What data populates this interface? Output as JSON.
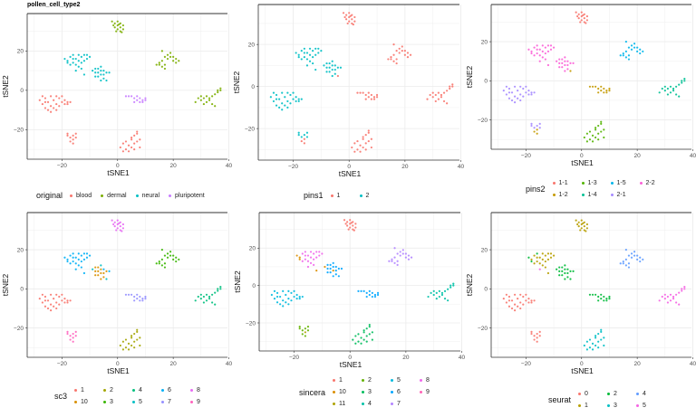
{
  "title": "pollen_cell_type2",
  "points": {
    "A": [
      [
        -2,
        35
      ],
      [
        -1,
        34
      ],
      [
        0,
        33
      ],
      [
        1,
        34
      ],
      [
        2,
        33
      ],
      [
        0,
        31
      ],
      [
        1,
        30
      ],
      [
        -1,
        32
      ],
      [
        2,
        31
      ],
      [
        0,
        35
      ],
      [
        1,
        32
      ],
      [
        -0.5,
        30
      ],
      [
        1.5,
        29.5
      ],
      [
        0.5,
        33.5
      ],
      [
        -1.5,
        33
      ]
    ],
    "B": [
      [
        -19,
        16
      ],
      [
        -18,
        15
      ],
      [
        -17,
        17
      ],
      [
        -16,
        18
      ],
      [
        -15,
        16
      ],
      [
        -14,
        15
      ],
      [
        -13,
        17
      ],
      [
        -12,
        18
      ],
      [
        -11,
        18
      ],
      [
        -10,
        17
      ],
      [
        -16,
        14
      ],
      [
        -15,
        13
      ],
      [
        -14,
        12
      ],
      [
        -13,
        14
      ],
      [
        -12,
        15
      ],
      [
        -17,
        13
      ],
      [
        -18,
        14
      ],
      [
        -14,
        18
      ],
      [
        -11,
        16
      ],
      [
        -12,
        8
      ],
      [
        -15,
        10
      ],
      [
        -13,
        11
      ],
      [
        -16,
        16
      ]
    ],
    "C": [
      [
        -9,
        10
      ],
      [
        -8,
        9
      ],
      [
        -7,
        11
      ],
      [
        -6,
        12
      ],
      [
        -5,
        10
      ],
      [
        -4,
        9
      ],
      [
        -6,
        8
      ],
      [
        -7,
        7
      ],
      [
        -5,
        6
      ],
      [
        -4,
        5
      ],
      [
        -6,
        5
      ],
      [
        -8,
        7
      ],
      [
        -7,
        9
      ],
      [
        -5,
        8
      ],
      [
        -3,
        9
      ],
      [
        -6,
        10
      ],
      [
        -8,
        11
      ]
    ],
    "D": [
      [
        14,
        13
      ],
      [
        15,
        14
      ],
      [
        16,
        12
      ],
      [
        16,
        15
      ],
      [
        17,
        13
      ],
      [
        17,
        17
      ],
      [
        18,
        16
      ],
      [
        18,
        18
      ],
      [
        19,
        17
      ],
      [
        20,
        15
      ],
      [
        21,
        16
      ],
      [
        22,
        15
      ],
      [
        16,
        20
      ],
      [
        19,
        19
      ],
      [
        15,
        13
      ],
      [
        17,
        11
      ],
      [
        20,
        17
      ],
      [
        21,
        14
      ]
    ],
    "E": [
      [
        -28,
        -5
      ],
      [
        -27,
        -7
      ],
      [
        -26,
        -4
      ],
      [
        -26,
        -9
      ],
      [
        -25,
        -6
      ],
      [
        -25,
        -10
      ],
      [
        -24,
        -3
      ],
      [
        -24,
        -8
      ],
      [
        -23,
        -5
      ],
      [
        -23,
        -9
      ],
      [
        -22,
        -3
      ],
      [
        -22,
        -7
      ],
      [
        -21,
        -4
      ],
      [
        -20,
        -6
      ],
      [
        -19,
        -5
      ],
      [
        -18,
        -6
      ],
      [
        -18,
        -7
      ],
      [
        -17,
        -6
      ],
      [
        -27,
        -3
      ],
      [
        -24,
        -11
      ],
      [
        -21,
        -8
      ],
      [
        -20,
        -3
      ],
      [
        -19,
        -7
      ],
      [
        -26,
        -6
      ],
      [
        -22,
        -10
      ]
    ],
    "F": [
      [
        3,
        -3
      ],
      [
        4,
        -3
      ],
      [
        5,
        -3
      ],
      [
        6,
        -4
      ],
      [
        7,
        -5
      ],
      [
        8,
        -4
      ],
      [
        9,
        -5
      ],
      [
        10,
        -5
      ],
      [
        8,
        -6
      ],
      [
        6,
        -6
      ],
      [
        7,
        -3
      ],
      [
        10,
        -4
      ],
      [
        9,
        -6
      ]
    ],
    "G": [
      [
        28,
        -6
      ],
      [
        29,
        -4
      ],
      [
        30,
        -5
      ],
      [
        31,
        -4
      ],
      [
        32,
        -6
      ],
      [
        32,
        -3
      ],
      [
        33,
        -5
      ],
      [
        34,
        -7
      ],
      [
        35,
        -8
      ],
      [
        33,
        -4
      ],
      [
        31,
        -7
      ],
      [
        30,
        -3
      ],
      [
        34,
        -3
      ],
      [
        36,
        0
      ],
      [
        37,
        1
      ],
      [
        36,
        -1
      ],
      [
        37,
        0
      ],
      [
        35,
        -2
      ]
    ],
    "H": [
      [
        -18,
        -22
      ],
      [
        -17,
        -24
      ],
      [
        -16,
        -25
      ],
      [
        -17,
        -26
      ],
      [
        -16,
        -23
      ],
      [
        -15,
        -24
      ],
      [
        -15,
        -22
      ],
      [
        -16,
        -27
      ],
      [
        -18,
        -23
      ]
    ],
    "I": [
      [
        1,
        -29
      ],
      [
        2,
        -27
      ],
      [
        3,
        -30
      ],
      [
        4,
        -28
      ],
      [
        5,
        -25
      ],
      [
        6,
        -23
      ],
      [
        7,
        -22
      ],
      [
        7,
        -26
      ],
      [
        8,
        -25
      ],
      [
        4,
        -31
      ],
      [
        5,
        -29
      ],
      [
        6,
        -27
      ],
      [
        3,
        -26
      ],
      [
        2,
        -31
      ],
      [
        8,
        -29
      ],
      [
        5,
        -24
      ],
      [
        6,
        -30
      ],
      [
        7,
        -21
      ]
    ]
  },
  "chart_data": [
    {
      "type": "scatter",
      "title": "pollen_cell_type2",
      "xlabel": "tSNE1",
      "ylabel": "tSNE2",
      "xticks": [
        -20,
        0,
        20,
        40
      ],
      "yticks": [
        -20,
        0,
        20
      ],
      "xlim": [
        -32.5,
        39.5
      ],
      "ylim": [
        -35,
        39
      ],
      "grid": true,
      "legend_position": "bottom",
      "legend_title": "original",
      "levels": [
        "blood",
        "dermal",
        "neural",
        "pluripotent"
      ],
      "colors": [
        "#F8766D",
        "#7CAE00",
        "#00BFC4",
        "#C77CFF"
      ],
      "cluster_labels": {
        "A": "dermal",
        "B": "neural",
        "C": "neural",
        "D": "dermal",
        "E": "blood",
        "F": "pluripotent",
        "G": "dermal",
        "H": "blood",
        "I": "blood"
      },
      "overrides": {}
    },
    {
      "type": "scatter",
      "xlabel": "tSNE1",
      "ylabel": "tSNE2",
      "xticks": [
        -20,
        0,
        20,
        40
      ],
      "yticks": [
        -20,
        0,
        20
      ],
      "xlim": [
        -32.5,
        39.5
      ],
      "ylim": [
        -35,
        39
      ],
      "grid": true,
      "legend_position": "bottom",
      "legend_title": "pins1",
      "levels": [
        "1",
        "2"
      ],
      "colors": [
        "#F8766D",
        "#00BFC4"
      ],
      "cluster_labels": {
        "A": "1",
        "B": "2",
        "C": "2",
        "D": "1",
        "E": "2",
        "F": "1",
        "G": "1",
        "H": "2",
        "I": "1"
      },
      "overrides": {
        "H": {
          "2": "1",
          "3": "1",
          "7": "1"
        },
        "C": {
          "9": "1"
        }
      }
    },
    {
      "type": "scatter",
      "xlabel": "tSNE1",
      "ylabel": "tSNE2",
      "xticks": [
        -20,
        0,
        20,
        40
      ],
      "yticks": [
        -20,
        0,
        20
      ],
      "xlim": [
        -32.5,
        39.5
      ],
      "ylim": [
        -35,
        39
      ],
      "grid": true,
      "legend_position": "bottom",
      "legend_title": "pins2",
      "levels": [
        "1-1",
        "1-2",
        "1-3",
        "1-4",
        "1-5",
        "2-1",
        "2-2"
      ],
      "colors": [
        "#F8766D",
        "#C49A00",
        "#53B400",
        "#00C094",
        "#00B6EB",
        "#A58AFF",
        "#FB61D7"
      ],
      "cluster_labels": {
        "A": "1-1",
        "B": "2-2",
        "C": "2-2",
        "D": "1-5",
        "E": "2-1",
        "F": "1-2",
        "G": "1-4",
        "H": "2-1",
        "I": "1-3"
      },
      "overrides": {
        "H": {
          "2": "1-2",
          "3": "1-2",
          "7": "1-2"
        },
        "C": {
          "9": "1-2"
        }
      }
    },
    {
      "type": "scatter",
      "xlabel": "tSNE1",
      "ylabel": "tSNE2",
      "xticks": [
        -20,
        0,
        20,
        40
      ],
      "yticks": [
        -20,
        0,
        20
      ],
      "xlim": [
        -32.5,
        39.5
      ],
      "ylim": [
        -35,
        39
      ],
      "grid": true,
      "legend_position": "bottom",
      "legend_title": "sc3",
      "levels": [
        "1",
        "10",
        "2",
        "3",
        "4",
        "5",
        "6",
        "7",
        "8",
        "9"
      ],
      "colors": [
        "#F8766D",
        "#D89000",
        "#A3A500",
        "#39B600",
        "#00BF7D",
        "#00BFC4",
        "#00B0F6",
        "#9590FF",
        "#E76BF3",
        "#FF62BC"
      ],
      "cluster_labels": {
        "A": "8",
        "B": "6",
        "C": "10",
        "D": "3",
        "E": "1",
        "F": "7",
        "G": "4",
        "H": "9",
        "I": "2"
      },
      "overrides": {
        "C": {
          "0": "5",
          "3": "5",
          "4": "6",
          "9": "5",
          "14": "6"
        }
      }
    },
    {
      "type": "scatter",
      "xlabel": "tSNE1",
      "ylabel": "tSNE2",
      "xticks": [
        -20,
        0,
        20,
        40
      ],
      "yticks": [
        -20,
        0,
        20
      ],
      "xlim": [
        -32.5,
        39.5
      ],
      "ylim": [
        -35,
        39
      ],
      "grid": true,
      "legend_position": "bottom",
      "legend_title": "sincera",
      "levels": [
        "1",
        "10",
        "11",
        "2",
        "3",
        "4",
        "5",
        "6",
        "7",
        "8",
        "9"
      ],
      "colors": [
        "#F8766D",
        "#DB8E00",
        "#AEA200",
        "#64B200",
        "#00BD5C",
        "#00C1A7",
        "#00BADE",
        "#00A6FF",
        "#B385FF",
        "#EF67EB",
        "#FF63B6"
      ],
      "cluster_labels": {
        "A": "1",
        "B": "8",
        "C": "6",
        "D": "7",
        "E": "5",
        "F": "6",
        "G": "4",
        "H": "2",
        "I": "3"
      },
      "overrides": {
        "B": {
          "0": "10",
          "1": "10",
          "16": "10",
          "19": "10"
        },
        "C": {
          "0": "10",
          "6": "10"
        },
        "H": {
          "2": "11"
        }
      }
    },
    {
      "type": "scatter",
      "xlabel": "tSNE1",
      "ylabel": "tSNE2",
      "xticks": [
        -20,
        0,
        20,
        40
      ],
      "yticks": [
        -20,
        0,
        20
      ],
      "xlim": [
        -32.5,
        39.5
      ],
      "ylim": [
        -35,
        39
      ],
      "grid": true,
      "legend_position": "bottom",
      "legend_title": "seurat",
      "levels": [
        "0",
        "1",
        "2",
        "3",
        "4",
        "5"
      ],
      "colors": [
        "#F8766D",
        "#B79F00",
        "#00BA38",
        "#00BFC4",
        "#619CFF",
        "#F564E3"
      ],
      "cluster_labels": {
        "A": "1",
        "B": "1",
        "C": "2",
        "D": "4",
        "E": "0",
        "F": "2",
        "G": "5",
        "H": "0",
        "I": "3"
      },
      "overrides": {
        "B": {
          "0": "2",
          "3": "2",
          "16": "2",
          "20": "5"
        }
      }
    }
  ]
}
